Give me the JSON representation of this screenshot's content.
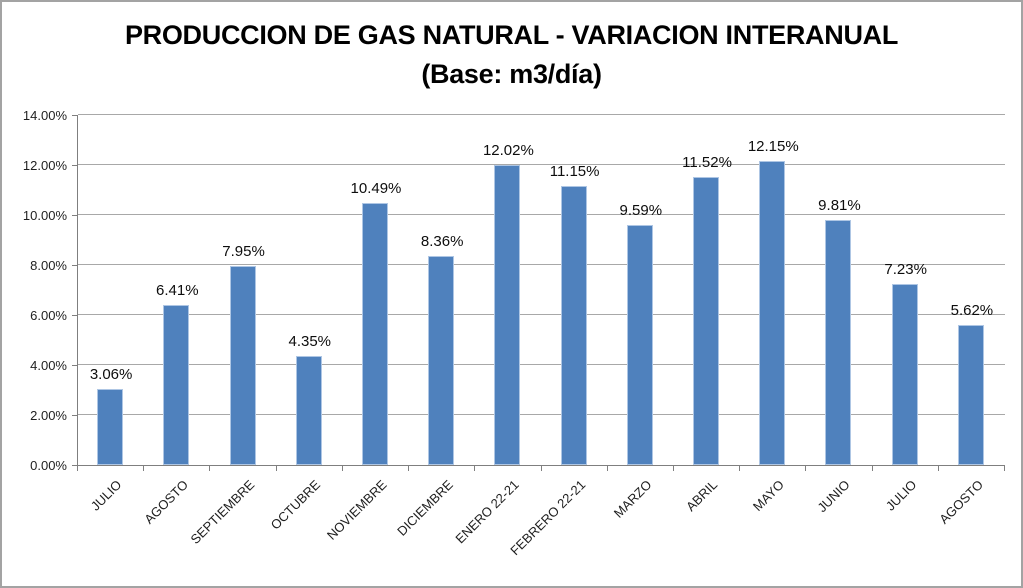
{
  "title": {
    "line1": "PRODUCCION DE GAS NATURAL - VARIACION INTERANUAL",
    "line2": "(Base: m3/día)"
  },
  "chart_data": {
    "type": "bar",
    "title": "PRODUCCION DE GAS NATURAL - VARIACION INTERANUAL (Base: m3/día)",
    "categories": [
      "JULIO",
      "AGOSTO",
      "SEPTIEMBRE",
      "OCTUBRE",
      "NOVIEMBRE",
      "DICIEMBRE",
      "ENERO 22-21",
      "FEBRERO 22-21",
      "MARZO",
      "ABRIL",
      "MAYO",
      "JUNIO",
      "JULIO",
      "AGOSTO"
    ],
    "values": [
      3.06,
      6.41,
      7.95,
      4.35,
      10.49,
      8.36,
      12.02,
      11.15,
      9.59,
      11.52,
      12.15,
      9.81,
      7.23,
      5.62
    ],
    "data_labels": [
      "3.06%",
      "6.41%",
      "7.95%",
      "4.35%",
      "10.49%",
      "8.36%",
      "12.02%",
      "11.15%",
      "9.59%",
      "11.52%",
      "12.15%",
      "9.81%",
      "7.23%",
      "5.62%"
    ],
    "y_tick_labels": [
      "0.00%",
      "2.00%",
      "4.00%",
      "6.00%",
      "8.00%",
      "10.00%",
      "12.00%",
      "14.00%"
    ],
    "ylim": [
      0,
      14
    ],
    "y_step": 2,
    "xlabel": "",
    "ylabel": "",
    "grid": true,
    "legend": "none",
    "colors": {
      "bar_fill": "#4f81bd",
      "bar_border": "#aec6e4",
      "gridline": "#a8a8a8",
      "axis": "#7f7f7f",
      "label_text": "#0d0d0d",
      "frame_border": "#a3a3a3"
    }
  }
}
